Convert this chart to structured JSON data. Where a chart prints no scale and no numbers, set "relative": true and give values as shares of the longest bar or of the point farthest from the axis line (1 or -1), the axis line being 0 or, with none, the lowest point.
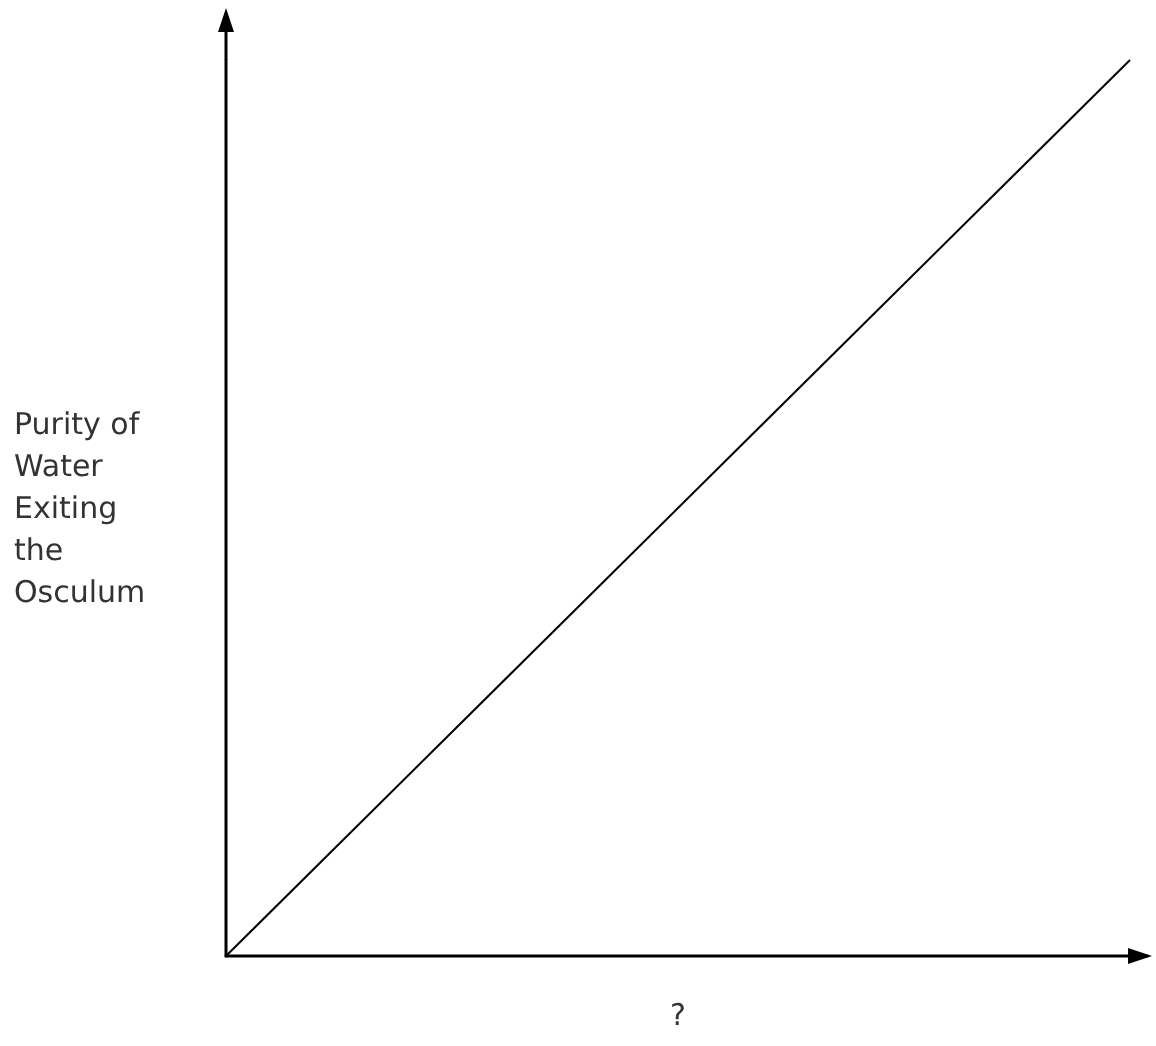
{
  "chart_data": {
    "type": "line",
    "xlabel": "?",
    "ylabel": "Purity of Water Exiting the Osculum",
    "categories": [
      null,
      null
    ],
    "series": [
      {
        "color": "#000000",
        "values": [
          0,
          1
        ]
      }
    ],
    "relative": true,
    "marker": "none",
    "line_style": "solid",
    "grid": false
  }
}
